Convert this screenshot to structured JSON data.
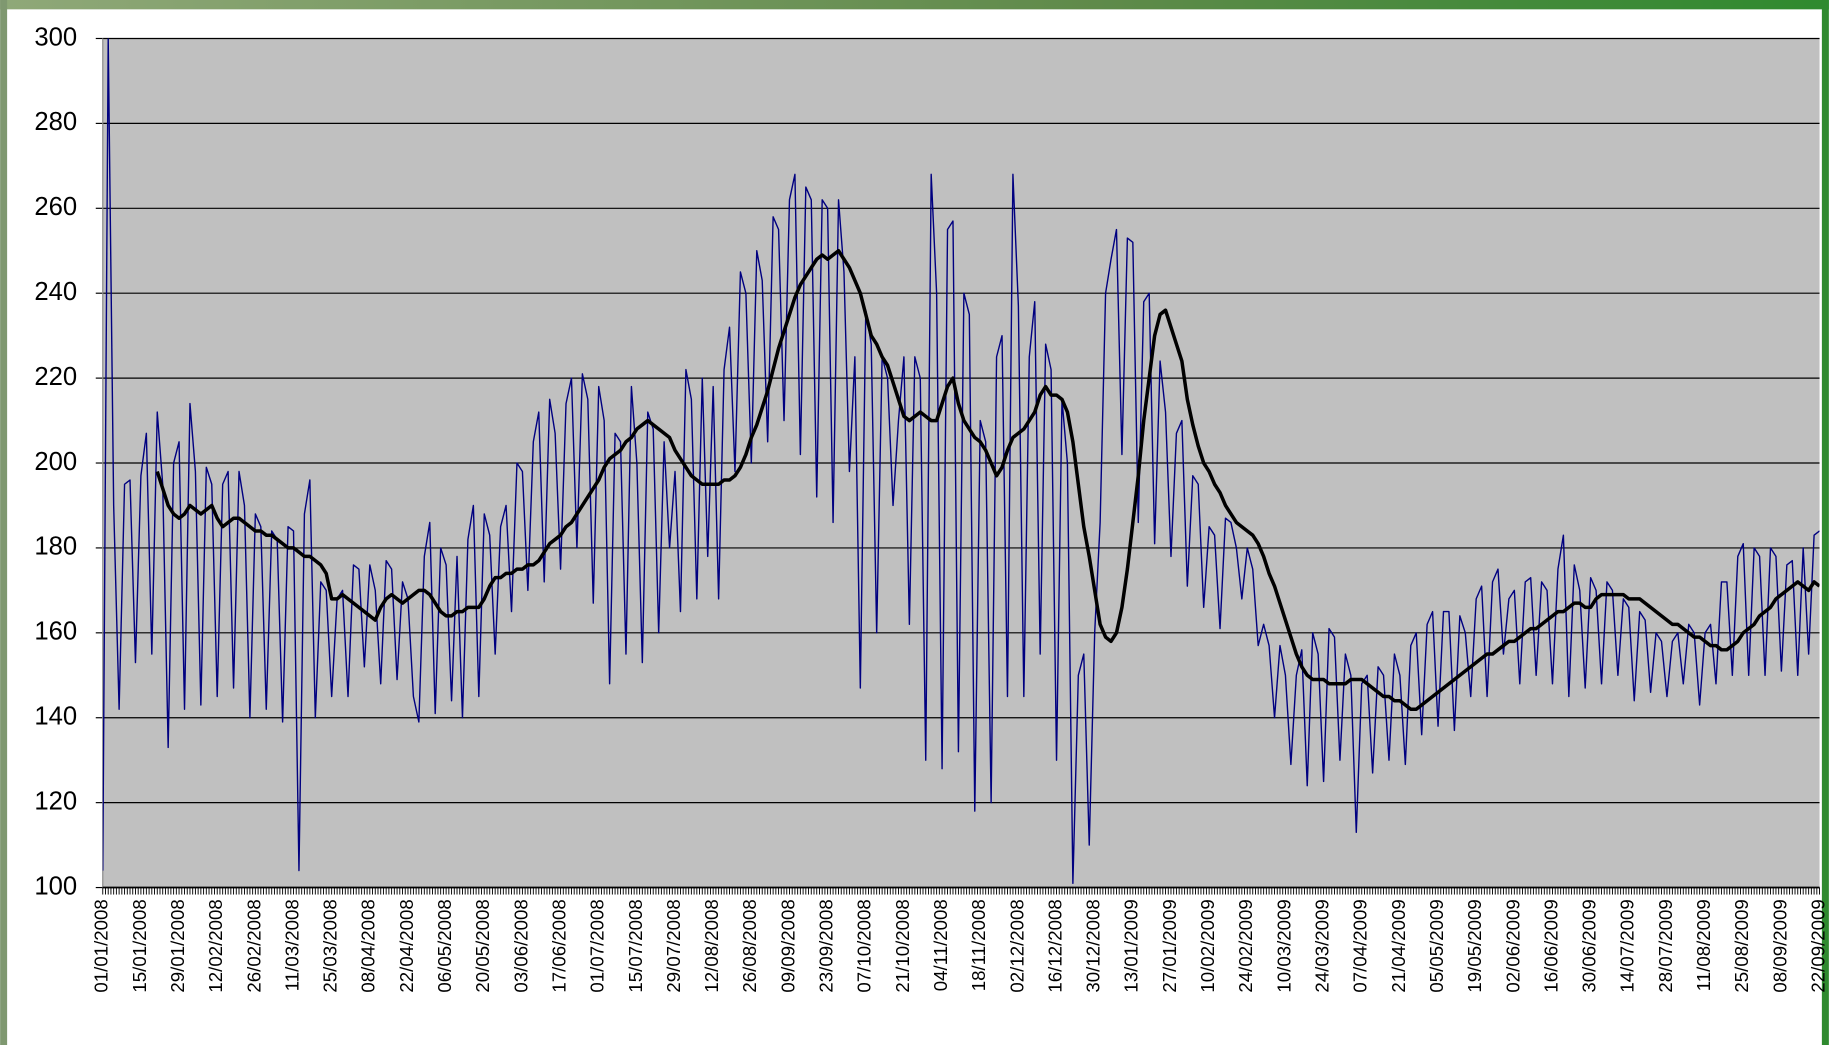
{
  "chart_data": {
    "type": "line",
    "categories": [
      "01/01/2008",
      null,
      null,
      null,
      null,
      null,
      null,
      "15/01/2008",
      null,
      null,
      null,
      null,
      null,
      null,
      "29/01/2008",
      null,
      null,
      null,
      null,
      null,
      null,
      "12/02/2008",
      null,
      null,
      null,
      null,
      null,
      null,
      "26/02/2008",
      null,
      null,
      null,
      null,
      null,
      null,
      "11/03/2008",
      null,
      null,
      null,
      null,
      null,
      null,
      "25/03/2008",
      null,
      null,
      null,
      null,
      null,
      null,
      "08/04/2008",
      null,
      null,
      null,
      null,
      null,
      null,
      "22/04/2008",
      null,
      null,
      null,
      null,
      null,
      null,
      "06/05/2008",
      null,
      null,
      null,
      null,
      null,
      null,
      "20/05/2008",
      null,
      null,
      null,
      null,
      null,
      null,
      "03/06/2008",
      null,
      null,
      null,
      null,
      null,
      null,
      "17/06/2008",
      null,
      null,
      null,
      null,
      null,
      null,
      "01/07/2008",
      null,
      null,
      null,
      null,
      null,
      null,
      "15/07/2008",
      null,
      null,
      null,
      null,
      null,
      null,
      "29/07/2008",
      null,
      null,
      null,
      null,
      null,
      null,
      "12/08/2008",
      null,
      null,
      null,
      null,
      null,
      null,
      "26/08/2008",
      null,
      null,
      null,
      null,
      null,
      null,
      "09/09/2008",
      null,
      null,
      null,
      null,
      null,
      null,
      "23/09/2008",
      null,
      null,
      null,
      null,
      null,
      null,
      "07/10/2008",
      null,
      null,
      null,
      null,
      null,
      null,
      "21/10/2008",
      null,
      null,
      null,
      null,
      null,
      null,
      "04/11/2008",
      null,
      null,
      null,
      null,
      null,
      null,
      "18/11/2008",
      null,
      null,
      null,
      null,
      null,
      null,
      "02/12/2008",
      null,
      null,
      null,
      null,
      null,
      null,
      "16/12/2008",
      null,
      null,
      null,
      null,
      null,
      null,
      "30/12/2008",
      null,
      null,
      null,
      null,
      null,
      null,
      "13/01/2009",
      null,
      null,
      null,
      null,
      null,
      null,
      "27/01/2009",
      null,
      null,
      null,
      null,
      null,
      null,
      "10/02/2009",
      null,
      null,
      null,
      null,
      null,
      null,
      "24/02/2009",
      null,
      null,
      null,
      null,
      null,
      null,
      "10/03/2009",
      null,
      null,
      null,
      null,
      null,
      null,
      "24/03/2009",
      null,
      null,
      null,
      null,
      null,
      null,
      "07/04/2009",
      null,
      null,
      null,
      null,
      null,
      null,
      "21/04/2009",
      null,
      null,
      null,
      null,
      null,
      null,
      "05/05/2009",
      null,
      null,
      null,
      null,
      null,
      null,
      "19/05/2009",
      null,
      null,
      null,
      null,
      null,
      null,
      "02/06/2009",
      null,
      null,
      null,
      null,
      null,
      null,
      "16/06/2009",
      null,
      null,
      null,
      null,
      null,
      null,
      "30/06/2009",
      null,
      null,
      null,
      null,
      null,
      null,
      "14/07/2009",
      null,
      null,
      null,
      null,
      null,
      null,
      "28/07/2009",
      null,
      null,
      null,
      null,
      null,
      null,
      "11/08/2009",
      null,
      null,
      null,
      null,
      null,
      null,
      "25/08/2009",
      null,
      null,
      null,
      null,
      null,
      null,
      "08/09/2009",
      null,
      null,
      null,
      null,
      null,
      null,
      "22/09/2009"
    ],
    "series": [
      {
        "color": "#000080",
        "width": 1.2,
        "values": [
          104,
          300,
          190,
          142,
          195,
          196,
          153,
          197,
          207,
          155,
          212,
          195,
          133,
          200,
          205,
          142,
          214,
          198,
          143,
          199,
          195,
          145,
          195,
          198,
          147,
          198,
          190,
          140,
          188,
          185,
          142,
          184,
          182,
          139,
          185,
          184,
          104,
          188,
          196,
          140,
          172,
          170,
          145,
          168,
          170,
          145,
          176,
          175,
          152,
          176,
          170,
          148,
          177,
          175,
          149,
          172,
          168,
          145,
          139,
          178,
          186,
          141,
          180,
          176,
          144,
          178,
          140,
          182,
          190,
          145,
          188,
          183,
          155,
          185,
          190,
          165,
          200,
          198,
          170,
          205,
          212,
          172,
          215,
          207,
          175,
          214,
          220,
          180,
          221,
          215,
          167,
          218,
          210,
          148,
          207,
          205,
          155,
          218,
          200,
          153,
          212,
          208,
          160,
          205,
          180,
          198,
          165,
          222,
          215,
          168,
          220,
          178,
          218,
          168,
          222,
          232,
          198,
          245,
          240,
          200,
          250,
          243,
          205,
          258,
          255,
          210,
          262,
          268,
          202,
          265,
          262,
          192,
          262,
          260,
          186,
          262,
          245,
          198,
          225,
          147,
          236,
          228,
          160,
          225,
          220,
          190,
          210,
          225,
          162,
          225,
          220,
          130,
          268,
          240,
          128,
          255,
          257,
          132,
          240,
          235,
          118,
          210,
          205,
          120,
          225,
          230,
          145,
          268,
          237,
          145,
          225,
          238,
          155,
          228,
          222,
          130,
          215,
          200,
          101,
          150,
          155,
          110,
          160,
          186,
          240,
          248,
          255,
          202,
          253,
          252,
          186,
          238,
          240,
          181,
          224,
          212,
          178,
          207,
          210,
          171,
          197,
          195,
          166,
          185,
          183,
          161,
          187,
          186,
          180,
          168,
          180,
          175,
          157,
          162,
          157,
          140,
          157,
          150,
          129,
          150,
          156,
          124,
          160,
          155,
          125,
          161,
          159,
          130,
          155,
          150,
          113,
          148,
          150,
          127,
          152,
          150,
          130,
          155,
          150,
          129,
          157,
          160,
          136,
          162,
          165,
          138,
          165,
          165,
          137,
          164,
          160,
          145,
          168,
          171,
          145,
          172,
          175,
          155,
          168,
          170,
          148,
          172,
          173,
          150,
          172,
          170,
          148,
          175,
          183,
          145,
          176,
          170,
          147,
          173,
          170,
          148,
          172,
          170,
          150,
          168,
          166,
          144,
          165,
          163,
          146,
          160,
          158,
          145,
          158,
          160,
          148,
          162,
          160,
          143,
          160,
          162,
          148,
          172,
          172,
          150,
          178,
          181,
          150,
          180,
          178,
          150,
          180,
          178,
          151,
          176,
          177,
          150,
          180,
          155,
          183,
          184
        ]
      },
      {
        "color": "#000000",
        "width": 3,
        "values": [
          null,
          null,
          null,
          null,
          null,
          null,
          null,
          null,
          null,
          null,
          198,
          194,
          190,
          188,
          187,
          188,
          190,
          189,
          188,
          189,
          190,
          187,
          185,
          186,
          187,
          187,
          186,
          185,
          184,
          184,
          183,
          183,
          182,
          181,
          180,
          180,
          179,
          178,
          178,
          177,
          176,
          174,
          168,
          168,
          169,
          168,
          167,
          166,
          165,
          164,
          163,
          166,
          168,
          169,
          168,
          167,
          168,
          169,
          170,
          170,
          169,
          167,
          165,
          164,
          164,
          165,
          165,
          166,
          166,
          166,
          168,
          171,
          173,
          173,
          174,
          174,
          175,
          175,
          176,
          176,
          177,
          179,
          181,
          182,
          183,
          185,
          186,
          188,
          190,
          192,
          194,
          196,
          199,
          201,
          202,
          203,
          205,
          206,
          208,
          209,
          210,
          209,
          208,
          207,
          206,
          203,
          201,
          199,
          197,
          196,
          195,
          195,
          195,
          195,
          196,
          196,
          197,
          199,
          202,
          206,
          209,
          213,
          217,
          222,
          227,
          231,
          235,
          239,
          242,
          244,
          246,
          248,
          249,
          248,
          249,
          250,
          248,
          246,
          243,
          240,
          235,
          230,
          228,
          225,
          223,
          219,
          215,
          211,
          210,
          211,
          212,
          211,
          210,
          210,
          214,
          218,
          220,
          214,
          210,
          208,
          206,
          205,
          203,
          200,
          197,
          199,
          203,
          206,
          207,
          208,
          210,
          212,
          216,
          218,
          216,
          216,
          215,
          212,
          205,
          195,
          185,
          178,
          170,
          162,
          159,
          158,
          160,
          166,
          175,
          186,
          197,
          210,
          220,
          230,
          235,
          236,
          232,
          228,
          224,
          215,
          209,
          204,
          200,
          198,
          195,
          193,
          190,
          188,
          186,
          185,
          184,
          183,
          181,
          178,
          174,
          171,
          167,
          163,
          159,
          155,
          152,
          150,
          149,
          149,
          149,
          148,
          148,
          148,
          148,
          149,
          149,
          149,
          148,
          147,
          146,
          145,
          145,
          144,
          144,
          143,
          142,
          142,
          143,
          144,
          145,
          146,
          147,
          148,
          149,
          150,
          151,
          152,
          153,
          154,
          155,
          155,
          156,
          157,
          158,
          158,
          159,
          160,
          161,
          161,
          162,
          163,
          164,
          165,
          165,
          166,
          167,
          167,
          166,
          166,
          168,
          169,
          169,
          169,
          169,
          169,
          168,
          168,
          168,
          167,
          166,
          165,
          164,
          163,
          162,
          162,
          161,
          160,
          159,
          159,
          158,
          157,
          157,
          156,
          156,
          157,
          158,
          160,
          161,
          162,
          164,
          165,
          166,
          168,
          169,
          170,
          171,
          172,
          171,
          170,
          172,
          171
        ]
      }
    ],
    "ylim": [
      100,
      300
    ],
    "yticks": [
      100,
      120,
      140,
      160,
      180,
      200,
      220,
      240,
      260,
      280,
      300
    ],
    "grid": true,
    "plot_color": "#c0c0c0"
  }
}
